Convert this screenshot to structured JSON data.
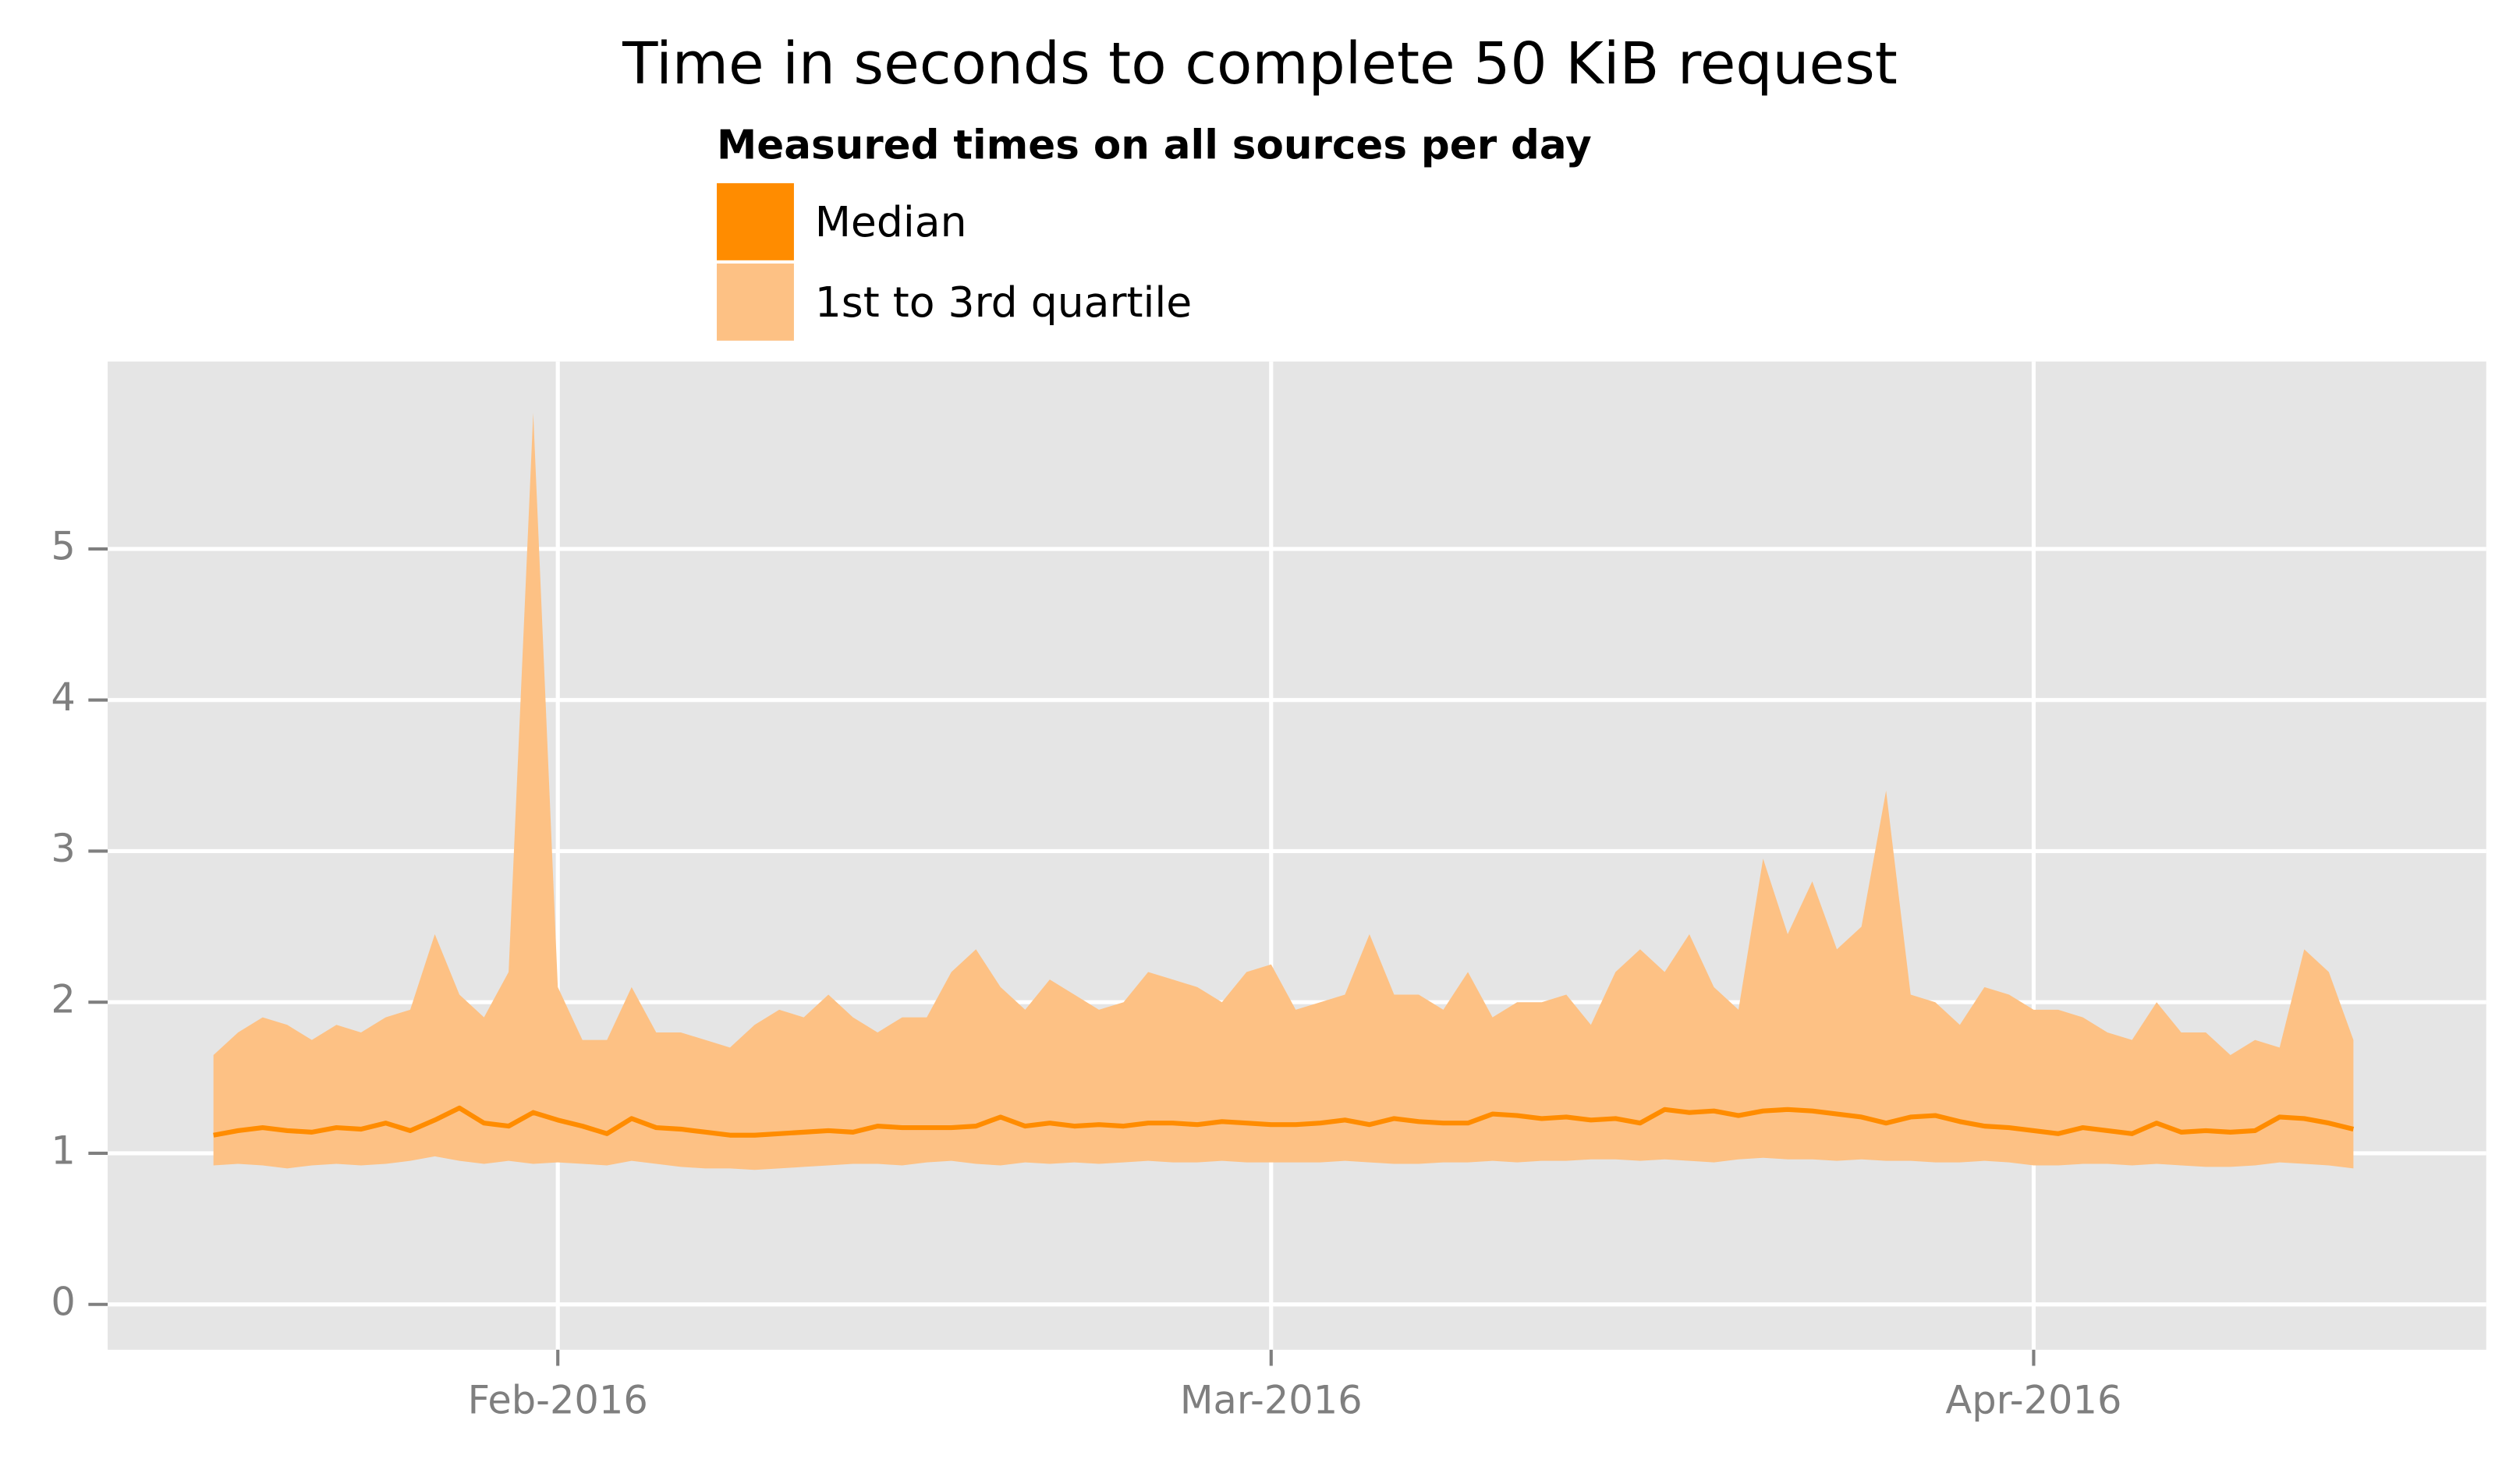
{
  "chart_data": {
    "type": "line",
    "title": "Time in seconds to complete 50 KiB request",
    "legend_title": "Measured times on all sources per day",
    "series": [
      {
        "name": "Median",
        "color": "#ff8c00",
        "values": [
          1.12,
          1.15,
          1.17,
          1.15,
          1.14,
          1.17,
          1.16,
          1.2,
          1.15,
          1.22,
          1.3,
          1.2,
          1.18,
          1.27,
          1.22,
          1.18,
          1.13,
          1.23,
          1.17,
          1.16,
          1.14,
          1.12,
          1.12,
          1.13,
          1.14,
          1.15,
          1.14,
          1.18,
          1.17,
          1.17,
          1.17,
          1.18,
          1.24,
          1.18,
          1.2,
          1.18,
          1.19,
          1.18,
          1.2,
          1.2,
          1.19,
          1.21,
          1.2,
          1.19,
          1.19,
          1.2,
          1.22,
          1.19,
          1.23,
          1.21,
          1.2,
          1.2,
          1.26,
          1.25,
          1.23,
          1.24,
          1.22,
          1.23,
          1.2,
          1.29,
          1.27,
          1.28,
          1.25,
          1.28,
          1.29,
          1.28,
          1.26,
          1.24,
          1.2,
          1.24,
          1.25,
          1.21,
          1.18,
          1.17,
          1.15,
          1.13,
          1.17,
          1.15,
          1.13,
          1.2,
          1.14,
          1.15,
          1.14,
          1.15,
          1.24,
          1.23,
          1.2,
          1.16
        ]
      },
      {
        "name": "1st to 3rd quartile",
        "color": "#fdc184",
        "low": [
          0.92,
          0.93,
          0.92,
          0.9,
          0.92,
          0.93,
          0.92,
          0.93,
          0.95,
          0.98,
          0.95,
          0.93,
          0.95,
          0.93,
          0.94,
          0.93,
          0.92,
          0.95,
          0.93,
          0.91,
          0.9,
          0.9,
          0.89,
          0.9,
          0.91,
          0.92,
          0.93,
          0.93,
          0.92,
          0.94,
          0.95,
          0.93,
          0.92,
          0.94,
          0.93,
          0.94,
          0.93,
          0.94,
          0.95,
          0.94,
          0.94,
          0.95,
          0.94,
          0.94,
          0.94,
          0.94,
          0.95,
          0.94,
          0.93,
          0.93,
          0.94,
          0.94,
          0.95,
          0.94,
          0.95,
          0.95,
          0.96,
          0.96,
          0.95,
          0.96,
          0.95,
          0.94,
          0.96,
          0.97,
          0.96,
          0.96,
          0.95,
          0.96,
          0.95,
          0.95,
          0.94,
          0.94,
          0.95,
          0.94,
          0.92,
          0.92,
          0.93,
          0.93,
          0.92,
          0.93,
          0.92,
          0.91,
          0.91,
          0.92,
          0.94,
          0.93,
          0.92,
          0.9
        ],
        "high": [
          1.65,
          1.8,
          1.9,
          1.85,
          1.75,
          1.85,
          1.8,
          1.9,
          1.95,
          2.45,
          2.05,
          1.9,
          2.2,
          5.9,
          2.1,
          1.75,
          1.75,
          2.1,
          1.8,
          1.8,
          1.75,
          1.7,
          1.85,
          1.95,
          1.9,
          2.05,
          1.9,
          1.8,
          1.9,
          1.9,
          2.2,
          2.35,
          2.1,
          1.95,
          2.15,
          2.05,
          1.95,
          2.0,
          2.2,
          2.15,
          2.1,
          2.0,
          2.2,
          2.25,
          1.95,
          2.0,
          2.05,
          2.45,
          2.05,
          2.05,
          1.95,
          2.2,
          1.9,
          2.0,
          2.0,
          2.05,
          1.85,
          2.2,
          2.35,
          2.2,
          2.45,
          2.1,
          1.95,
          2.95,
          2.45,
          2.8,
          2.35,
          2.5,
          3.4,
          2.05,
          2.0,
          1.85,
          2.1,
          2.05,
          1.95,
          1.95,
          1.9,
          1.8,
          1.75,
          2.0,
          1.8,
          1.8,
          1.65,
          1.75,
          1.7,
          2.35,
          2.2,
          1.75
        ]
      }
    ],
    "xlim": [
      -4.3,
      92.4
    ],
    "xticks": [
      {
        "value": 14,
        "label": "Feb-2016"
      },
      {
        "value": 43,
        "label": "Mar-2016"
      },
      {
        "value": 74,
        "label": "Apr-2016"
      }
    ],
    "ylim": [
      -0.3,
      6.24
    ],
    "yticks": [
      0,
      1,
      2,
      3,
      4,
      5
    ],
    "grid": true
  }
}
